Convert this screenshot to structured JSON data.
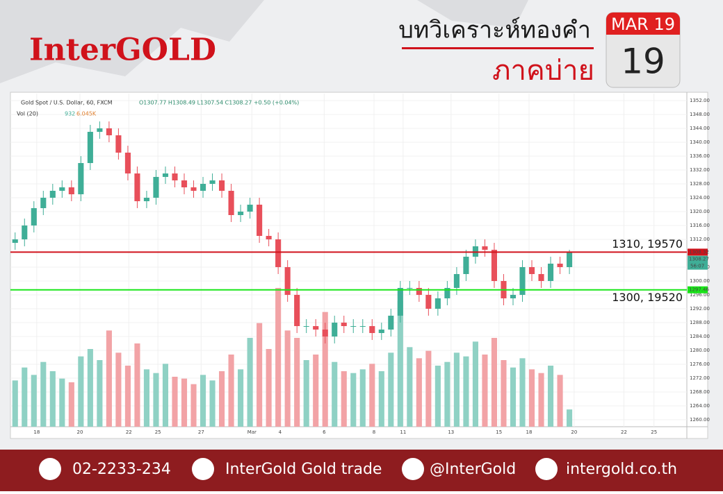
{
  "header": {
    "logo": "InterGOLD",
    "title": "บทวิเคราะห์ทองคำ",
    "subtitle": "ภาคบ่าย",
    "calendar_month": "MAR 19",
    "calendar_day": "19"
  },
  "chart_data": {
    "type": "candlestick",
    "symbol": "Gold Spot / U.S. Dollar, 60, FXCM",
    "ohlc_label": "O1307.77 H1308.49 L1307.54 C1308.27 +0.50 (+0.04%)",
    "volume_label": "Vol (20)",
    "volume_last": "932",
    "volume_avg": "6.045K",
    "open": [
      1311,
      1312,
      1316,
      1321,
      1324,
      1326,
      1327,
      1325,
      1334,
      1343,
      1344,
      1342,
      1337,
      1331,
      1323,
      1324,
      1330,
      1331,
      1329,
      1327,
      1326,
      1328,
      1329,
      1326,
      1319,
      1320,
      1322,
      1313,
      1312,
      1304,
      1296,
      1287,
      1287,
      1286,
      1284,
      1288,
      1287,
      1287,
      1287,
      1285,
      1286,
      1290,
      1298,
      1298,
      1296,
      1292,
      1295,
      1298,
      1302,
      1307,
      1310,
      1309,
      1300,
      1295,
      1296,
      1304,
      1302,
      1300,
      1305,
      1304
    ],
    "high": [
      1314,
      1318,
      1323,
      1326,
      1328,
      1329,
      1329,
      1336,
      1345,
      1346,
      1346,
      1344,
      1339,
      1333,
      1326,
      1332,
      1333,
      1333,
      1331,
      1329,
      1330,
      1331,
      1331,
      1328,
      1322,
      1324,
      1324,
      1315,
      1314,
      1306,
      1298,
      1289,
      1289,
      1288,
      1290,
      1290,
      1289,
      1289,
      1289,
      1288,
      1292,
      1300,
      1300,
      1300,
      1298,
      1297,
      1300,
      1304,
      1309,
      1312,
      1312,
      1311,
      1302,
      1298,
      1306,
      1306,
      1304,
      1307,
      1307,
      1309
    ],
    "low": [
      1309,
      1310,
      1314,
      1319,
      1322,
      1324,
      1323,
      1323,
      1332,
      1341,
      1340,
      1335,
      1329,
      1321,
      1321,
      1322,
      1328,
      1327,
      1325,
      1324,
      1324,
      1326,
      1324,
      1317,
      1317,
      1318,
      1311,
      1310,
      1302,
      1294,
      1285,
      1285,
      1284,
      1282,
      1282,
      1285,
      1285,
      1285,
      1283,
      1283,
      1284,
      1288,
      1296,
      1294,
      1290,
      1290,
      1293,
      1296,
      1300,
      1305,
      1307,
      1298,
      1293,
      1293,
      1294,
      1300,
      1298,
      1298,
      1302,
      1302
    ],
    "close": [
      1312,
      1316,
      1321,
      1324,
      1326,
      1327,
      1325,
      1334,
      1343,
      1344,
      1342,
      1337,
      1331,
      1323,
      1324,
      1330,
      1331,
      1329,
      1327,
      1326,
      1328,
      1329,
      1326,
      1319,
      1320,
      1322,
      1313,
      1312,
      1304,
      1296,
      1287,
      1287,
      1286,
      1284,
      1288,
      1287,
      1287,
      1287,
      1285,
      1286,
      1290,
      1298,
      1298,
      1296,
      1292,
      1295,
      1298,
      1302,
      1307,
      1310,
      1309,
      1300,
      1295,
      1296,
      1304,
      1302,
      1300,
      1305,
      1304,
      1308.27
    ],
    "volume": [
      2500,
      3200,
      2800,
      3500,
      3000,
      2600,
      2400,
      3800,
      4200,
      3600,
      5200,
      4000,
      3300,
      4500,
      3100,
      2900,
      3400,
      2700,
      2600,
      2300,
      2800,
      2500,
      3000,
      3900,
      3100,
      4800,
      5600,
      4200,
      7500,
      5200,
      4800,
      3600,
      3900,
      6200,
      3500,
      3000,
      2900,
      3100,
      3400,
      3000,
      4000,
      6800,
      4300,
      3700,
      4100,
      3300,
      3500,
      4000,
      3800,
      4600,
      3900,
      4800,
      3600,
      3200,
      3700,
      3100,
      2900,
      3300,
      2800,
      932
    ],
    "up_color": "#3fae97",
    "down_color": "#e84f5a",
    "up_volume_color": "#8fd1c4",
    "down_volume_color": "#f2a3a6",
    "xlim": [
      0,
      72
    ],
    "ylim": [
      1258,
      1354
    ],
    "volume_lim": [
      0,
      18000
    ],
    "xticks": [
      {
        "value": 2.8,
        "label": "18"
      },
      {
        "value": 7.4,
        "label": "20"
      },
      {
        "value": 12.6,
        "label": "22"
      },
      {
        "value": 15.7,
        "label": "25"
      },
      {
        "value": 20.3,
        "label": "27"
      },
      {
        "value": 25.7,
        "label": "Mar"
      },
      {
        "value": 28.7,
        "label": "4"
      },
      {
        "value": 33.4,
        "label": "6"
      },
      {
        "value": 38.7,
        "label": "8"
      },
      {
        "value": 41.8,
        "label": "11"
      },
      {
        "value": 46.9,
        "label": "13"
      },
      {
        "value": 52.0,
        "label": "15"
      },
      {
        "value": 55.2,
        "label": "18"
      },
      {
        "value": 60.0,
        "label": "20"
      },
      {
        "value": 65.3,
        "label": "22"
      },
      {
        "value": 68.5,
        "label": "25"
      }
    ],
    "yticks": [
      {
        "value": 1260,
        "label": "1260.00"
      },
      {
        "value": 1264,
        "label": "1264.00"
      },
      {
        "value": 1268,
        "label": "1268.00"
      },
      {
        "value": 1272,
        "label": "1272.00"
      },
      {
        "value": 1276,
        "label": "1276.00"
      },
      {
        "value": 1280,
        "label": "1280.00"
      },
      {
        "value": 1284,
        "label": "1284.00"
      },
      {
        "value": 1288,
        "label": "1288.00"
      },
      {
        "value": 1292,
        "label": "1292.00"
      },
      {
        "value": 1296,
        "label": "1296.00"
      },
      {
        "value": 1300,
        "label": "1300.00"
      },
      {
        "value": 1304,
        "label": "1304.00"
      },
      {
        "value": 1312,
        "label": "1312.00"
      },
      {
        "value": 1316,
        "label": "1316.00"
      },
      {
        "value": 1320,
        "label": "1320.00"
      },
      {
        "value": 1324,
        "label": "1324.00"
      },
      {
        "value": 1328,
        "label": "1328.00"
      },
      {
        "value": 1332,
        "label": "1332.00"
      },
      {
        "value": 1336,
        "label": "1336.00"
      },
      {
        "value": 1340,
        "label": "1340.00"
      },
      {
        "value": 1344,
        "label": "1344.00"
      },
      {
        "value": 1348,
        "label": "1348.00"
      },
      {
        "value": 1352,
        "label": "1352.00"
      }
    ],
    "grid": true,
    "levels": [
      {
        "value": 1308.32,
        "label": "1308.32",
        "color": "#d0121b",
        "annotation": "1310, 19570"
      },
      {
        "value": 1297.46,
        "label": "1297.46",
        "color": "#19e619",
        "annotation": "1300, 19520"
      }
    ],
    "last_price": {
      "value": 1308.27,
      "label": "1308.27",
      "countdown": "56:07",
      "color": "#3fae97"
    }
  },
  "footer": {
    "phone": "02-2233-234",
    "facebook": "InterGold Gold trade",
    "line": "@InterGold",
    "web": "intergold.co.th"
  }
}
